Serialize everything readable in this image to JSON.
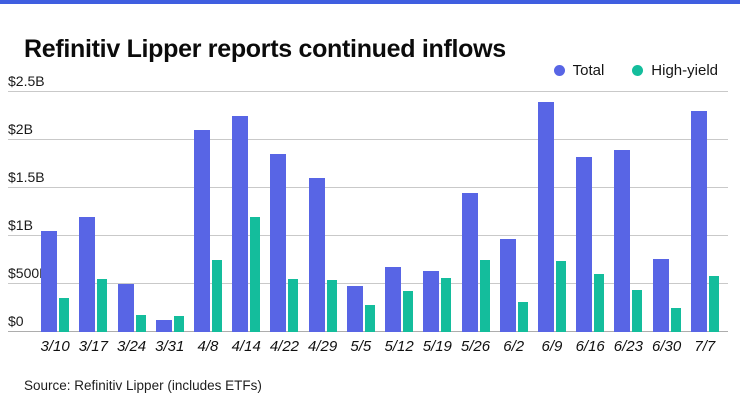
{
  "page": {
    "title": "Refinitiv Lipper reports continued inflows",
    "source": "Source: Refinitiv Lipper (includes ETFs)",
    "colors": {
      "accent_bar": "#3f5ee0",
      "total_series": "#5865e5",
      "high_yield_series": "#14bd9c",
      "gridline": "#c9c9c9"
    }
  },
  "chart_data": {
    "type": "bar",
    "title": "Refinitiv Lipper reports continued inflows",
    "xlabel": "",
    "ylabel": "",
    "unit": "USD (M = millions, B = billions)",
    "ylim": [
      0,
      2.5
    ],
    "grid": true,
    "legend_position": "top-right",
    "categories": [
      "3/10",
      "3/17",
      "3/24",
      "3/31",
      "4/8",
      "4/14",
      "4/22",
      "4/29",
      "5/5",
      "5/12",
      "5/19",
      "5/26",
      "6/2",
      "6/9",
      "6/16",
      "6/23",
      "6/30",
      "7/7"
    ],
    "series": [
      {
        "name": "Total",
        "color": "#5865e5",
        "values_billions": [
          1.05,
          1.2,
          0.5,
          0.12,
          2.1,
          2.25,
          1.85,
          1.6,
          0.48,
          0.68,
          0.64,
          1.45,
          0.97,
          2.4,
          1.82,
          1.9,
          0.76,
          2.3
        ]
      },
      {
        "name": "High-yield",
        "color": "#14bd9c",
        "values_billions": [
          0.35,
          0.55,
          0.18,
          0.17,
          0.75,
          1.2,
          0.55,
          0.54,
          0.28,
          0.43,
          0.56,
          0.75,
          0.31,
          0.74,
          0.6,
          0.44,
          0.25,
          0.58
        ]
      }
    ],
    "y_ticks": [
      {
        "label": "$0",
        "value": 0
      },
      {
        "label": "$500M",
        "value": 0.5
      },
      {
        "label": "$1B",
        "value": 1
      },
      {
        "label": "$1.5B",
        "value": 1.5
      },
      {
        "label": "$2B",
        "value": 2
      },
      {
        "label": "$2.5B",
        "value": 2.5
      }
    ]
  }
}
